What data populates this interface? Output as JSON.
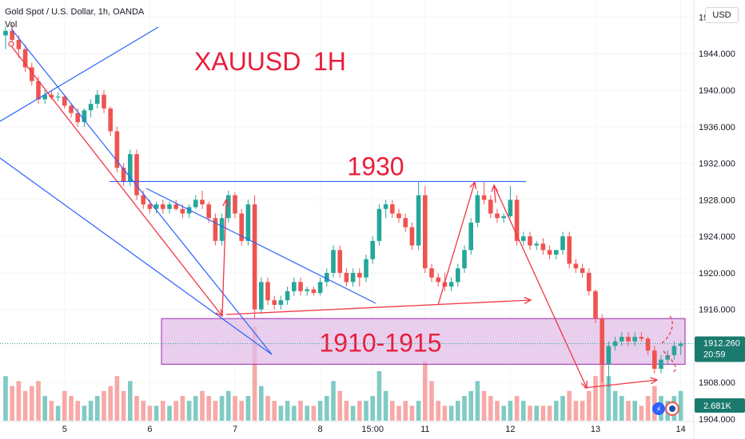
{
  "header": {
    "symbol_line": "Gold Spot / U.S. Dollar, 1h, OANDA",
    "volume_label": "Vol",
    "currency": "USD"
  },
  "price_tag": {
    "value": "1912.260",
    "countdown": "20:59"
  },
  "volume_tag": {
    "value": "2.681K"
  },
  "chart_data": {
    "type": "candlestick",
    "title": "XAUUSD 1H",
    "title_parts": [
      "XAUUSD",
      "1H"
    ],
    "symbol": "XAUUSD",
    "timeframe": "1h",
    "y_axis": {
      "range": [
        1904,
        1949
      ],
      "ticks": [
        "1948.000",
        "1944.000",
        "1940.000",
        "1936.000",
        "1932.000",
        "1928.000",
        "1924.000",
        "1920.000",
        "1916.000",
        "1912.000",
        "1908.000",
        "1904.000"
      ]
    },
    "x_axis": {
      "ticks": [
        {
          "label": "5",
          "i": 9
        },
        {
          "label": "6",
          "i": 22
        },
        {
          "label": "7",
          "i": 35
        },
        {
          "label": "8",
          "i": 48
        },
        {
          "label": "15:00",
          "i": 56
        },
        {
          "label": "11",
          "i": 64
        },
        {
          "label": "12",
          "i": 77
        },
        {
          "label": "13",
          "i": 90
        },
        {
          "label": "14",
          "i": 103
        }
      ]
    },
    "candles": [
      [
        1946.0,
        1947.0,
        1944.5,
        1946.5
      ],
      [
        1946.5,
        1947.2,
        1945.0,
        1945.5
      ],
      [
        1945.5,
        1946.0,
        1943.5,
        1944.5
      ],
      [
        1944.5,
        1945.0,
        1942.0,
        1942.5
      ],
      [
        1942.5,
        1943.0,
        1940.5,
        1941.0
      ],
      [
        1941.0,
        1941.5,
        1938.5,
        1939.0
      ],
      [
        1939.0,
        1940.0,
        1938.5,
        1939.5
      ],
      [
        1939.5,
        1940.0,
        1939.0,
        1939.2
      ],
      [
        1939.2,
        1939.8,
        1938.8,
        1939.3
      ],
      [
        1939.3,
        1939.5,
        1938.0,
        1938.3
      ],
      [
        1938.3,
        1938.5,
        1937.0,
        1937.5
      ],
      [
        1937.5,
        1938.0,
        1936.0,
        1936.5
      ],
      [
        1936.5,
        1938.0,
        1936.0,
        1937.8
      ],
      [
        1937.8,
        1939.0,
        1937.0,
        1938.5
      ],
      [
        1938.5,
        1940.0,
        1938.0,
        1939.5
      ],
      [
        1939.5,
        1940.0,
        1937.5,
        1938.0
      ],
      [
        1938.0,
        1938.2,
        1935.0,
        1935.5
      ],
      [
        1935.5,
        1936.0,
        1931.0,
        1931.5
      ],
      [
        1931.5,
        1932.0,
        1929.5,
        1930.0
      ],
      [
        1930.0,
        1933.5,
        1929.5,
        1933.0
      ],
      [
        1933.0,
        1933.5,
        1928.0,
        1928.5
      ],
      [
        1928.5,
        1929.0,
        1927.0,
        1927.5
      ],
      [
        1927.5,
        1928.0,
        1926.5,
        1927.0
      ],
      [
        1927.0,
        1927.8,
        1926.5,
        1927.5
      ],
      [
        1927.5,
        1928.0,
        1926.5,
        1927.0
      ],
      [
        1927.0,
        1927.8,
        1926.5,
        1927.5
      ],
      [
        1927.5,
        1928.0,
        1926.8,
        1927.0
      ],
      [
        1927.0,
        1927.5,
        1926.0,
        1926.5
      ],
      [
        1926.5,
        1927.5,
        1926.0,
        1927.2
      ],
      [
        1927.2,
        1928.5,
        1927.0,
        1928.0
      ],
      [
        1928.0,
        1929.0,
        1927.0,
        1927.5
      ],
      [
        1927.5,
        1927.8,
        1925.5,
        1926.0
      ],
      [
        1926.0,
        1926.5,
        1923.0,
        1923.5
      ],
      [
        1923.5,
        1926.5,
        1923.0,
        1926.0
      ],
      [
        1926.0,
        1929.0,
        1925.5,
        1928.5
      ],
      [
        1928.5,
        1928.8,
        1926.0,
        1926.5
      ],
      [
        1926.5,
        1927.0,
        1923.0,
        1923.5
      ],
      [
        1923.5,
        1928.0,
        1923.0,
        1927.5
      ],
      [
        1927.5,
        1928.5,
        1915.0,
        1916.0
      ],
      [
        1916.0,
        1919.5,
        1915.5,
        1919.0
      ],
      [
        1919.0,
        1919.5,
        1916.5,
        1917.0
      ],
      [
        1917.0,
        1917.5,
        1916.0,
        1916.5
      ],
      [
        1916.5,
        1917.5,
        1916.0,
        1917.0
      ],
      [
        1917.0,
        1918.5,
        1916.5,
        1918.0
      ],
      [
        1918.0,
        1919.5,
        1917.5,
        1919.0
      ],
      [
        1919.0,
        1919.5,
        1917.5,
        1918.0
      ],
      [
        1918.0,
        1918.5,
        1917.5,
        1918.2
      ],
      [
        1918.2,
        1918.5,
        1917.5,
        1917.8
      ],
      [
        1917.8,
        1919.5,
        1917.5,
        1919.0
      ],
      [
        1919.0,
        1920.5,
        1918.5,
        1920.0
      ],
      [
        1920.0,
        1923.0,
        1919.5,
        1922.5
      ],
      [
        1922.5,
        1923.0,
        1919.5,
        1920.0
      ],
      [
        1920.0,
        1920.5,
        1918.5,
        1919.0
      ],
      [
        1919.0,
        1920.5,
        1918.5,
        1920.0
      ],
      [
        1920.0,
        1920.5,
        1918.5,
        1919.5
      ],
      [
        1919.5,
        1922.0,
        1919.0,
        1921.5
      ],
      [
        1921.5,
        1924.0,
        1921.0,
        1923.5
      ],
      [
        1923.5,
        1927.5,
        1923.0,
        1927.0
      ],
      [
        1927.0,
        1928.0,
        1926.0,
        1927.5
      ],
      [
        1927.5,
        1928.0,
        1926.0,
        1926.5
      ],
      [
        1926.5,
        1927.0,
        1925.5,
        1926.0
      ],
      [
        1926.0,
        1926.5,
        1924.5,
        1925.0
      ],
      [
        1925.0,
        1925.5,
        1922.5,
        1923.0
      ],
      [
        1923.0,
        1930.0,
        1922.5,
        1928.5
      ],
      [
        1928.5,
        1929.5,
        1920.0,
        1920.5
      ],
      [
        1920.5,
        1921.0,
        1919.0,
        1919.5
      ],
      [
        1919.5,
        1920.0,
        1918.5,
        1919.0
      ],
      [
        1919.0,
        1920.0,
        1918.0,
        1918.5
      ],
      [
        1918.5,
        1919.5,
        1918.0,
        1919.0
      ],
      [
        1919.0,
        1921.0,
        1918.5,
        1920.5
      ],
      [
        1920.5,
        1923.0,
        1920.0,
        1922.5
      ],
      [
        1922.5,
        1926.0,
        1922.0,
        1925.5
      ],
      [
        1925.5,
        1929.0,
        1925.0,
        1928.5
      ],
      [
        1928.5,
        1930.0,
        1927.5,
        1928.0
      ],
      [
        1928.0,
        1928.5,
        1926.0,
        1926.5
      ],
      [
        1926.5,
        1927.0,
        1925.5,
        1926.0
      ],
      [
        1926.0,
        1926.5,
        1925.5,
        1926.2
      ],
      [
        1926.2,
        1929.5,
        1926.0,
        1928.0
      ],
      [
        1928.0,
        1928.5,
        1923.0,
        1923.5
      ],
      [
        1923.5,
        1924.5,
        1923.0,
        1924.0
      ],
      [
        1924.0,
        1924.5,
        1922.5,
        1923.0
      ],
      [
        1923.0,
        1923.5,
        1922.5,
        1923.2
      ],
      [
        1923.2,
        1923.8,
        1922.0,
        1922.5
      ],
      [
        1922.5,
        1923.0,
        1921.5,
        1922.0
      ],
      [
        1922.0,
        1922.5,
        1921.5,
        1922.5
      ],
      [
        1922.5,
        1924.5,
        1922.0,
        1924.0
      ],
      [
        1924.0,
        1924.5,
        1920.5,
        1921.0
      ],
      [
        1921.0,
        1921.5,
        1920.0,
        1920.5
      ],
      [
        1920.5,
        1921.0,
        1919.5,
        1920.0
      ],
      [
        1920.0,
        1920.5,
        1917.5,
        1918.0
      ],
      [
        1918.0,
        1918.2,
        1914.5,
        1915.0
      ],
      [
        1915.0,
        1915.5,
        1908.0,
        1910.0
      ],
      [
        1910.0,
        1912.5,
        1907.5,
        1912.0
      ],
      [
        1912.0,
        1913.0,
        1911.5,
        1912.5
      ],
      [
        1912.5,
        1913.5,
        1912.0,
        1913.0
      ],
      [
        1913.0,
        1913.5,
        1912.0,
        1912.5
      ],
      [
        1912.5,
        1913.5,
        1912.0,
        1913.0
      ],
      [
        1913.0,
        1913.5,
        1912.5,
        1912.8
      ],
      [
        1912.8,
        1913.0,
        1911.0,
        1911.5
      ],
      [
        1911.5,
        1912.0,
        1909.0,
        1909.5
      ],
      [
        1909.5,
        1911.0,
        1909.0,
        1910.5
      ],
      [
        1910.5,
        1911.5,
        1910.0,
        1911.0
      ],
      [
        1911.0,
        1912.5,
        1910.5,
        1912.0
      ],
      [
        1912.0,
        1912.5,
        1911.0,
        1912.26
      ]
    ],
    "volume": [
      0.9,
      0.7,
      0.8,
      0.6,
      0.7,
      0.8,
      0.5,
      0.4,
      0.3,
      0.6,
      0.5,
      0.4,
      0.3,
      0.4,
      0.5,
      0.6,
      0.7,
      0.9,
      0.6,
      0.8,
      0.5,
      0.4,
      0.3,
      0.3,
      0.4,
      0.3,
      0.4,
      0.5,
      0.4,
      0.5,
      0.6,
      0.5,
      0.4,
      0.5,
      0.6,
      0.5,
      0.4,
      0.5,
      1.9,
      0.7,
      0.5,
      0.4,
      0.3,
      0.4,
      0.3,
      0.4,
      0.3,
      0.3,
      0.4,
      0.5,
      0.8,
      0.6,
      0.4,
      0.3,
      0.4,
      0.4,
      0.5,
      1.0,
      0.6,
      0.4,
      0.3,
      0.4,
      0.3,
      0.4,
      1.2,
      0.8,
      0.4,
      0.3,
      0.3,
      0.4,
      0.5,
      0.6,
      0.8,
      0.6,
      0.5,
      0.4,
      0.3,
      0.4,
      0.5,
      0.4,
      0.3,
      0.3,
      0.3,
      0.3,
      0.4,
      0.5,
      0.6,
      0.4,
      0.4,
      0.6,
      0.9,
      1.3,
      0.9,
      0.6,
      0.5,
      0.4,
      0.4,
      0.3,
      0.5,
      0.7,
      0.5,
      0.4,
      0.5,
      0.6
    ],
    "annotations": {
      "resistance": {
        "label": "1930",
        "level": 1930
      },
      "support_zone": {
        "label": "1910-1915",
        "low": 1910,
        "high": 1915
      }
    },
    "colors": {
      "up": "#26a69a",
      "down": "#ef5350",
      "up_vol": "#80cbc4",
      "down_vol": "#f7a9a7",
      "lines": "#2962ff",
      "arrows": "#f23645",
      "zone": "#9c27b0",
      "zone_fill": "#e1bee7",
      "price_tag": "#1a7a6e"
    }
  }
}
